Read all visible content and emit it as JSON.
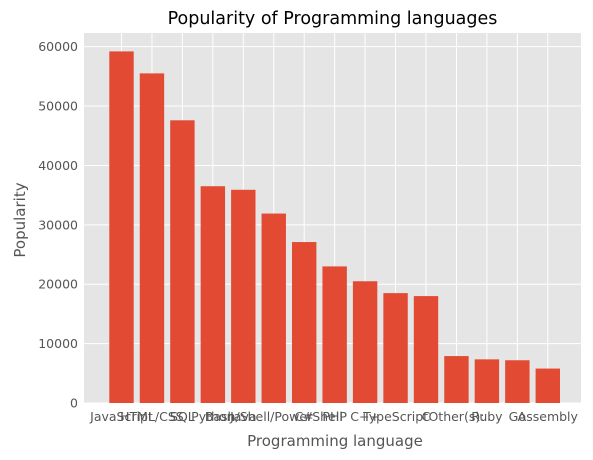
{
  "chart_data": {
    "type": "bar",
    "title": "Popularity of Programming languages",
    "xlabel": "Programming language",
    "ylabel": "Popularity",
    "categories": [
      "JavaScript",
      "HTML/CSS",
      "SQL",
      "Python",
      "Java",
      "Bash/Shell/PowerShell",
      "C#",
      "PHP",
      "C++",
      "TypeScript",
      "C",
      "Other(s):",
      "Ruby",
      "Go",
      "Assembly"
    ],
    "values": [
      59200,
      55500,
      47600,
      36500,
      35900,
      31900,
      27100,
      23000,
      20500,
      18500,
      18000,
      7900,
      7350,
      7200,
      5800
    ],
    "yticks": [
      0,
      10000,
      20000,
      30000,
      40000,
      50000,
      60000
    ],
    "ylim": [
      0,
      62300
    ],
    "grid": true,
    "colors": {
      "bar": "#E24A33",
      "plot_background": "#E5E5E5",
      "grid": "#FFFFFF",
      "text": "#555555"
    }
  }
}
